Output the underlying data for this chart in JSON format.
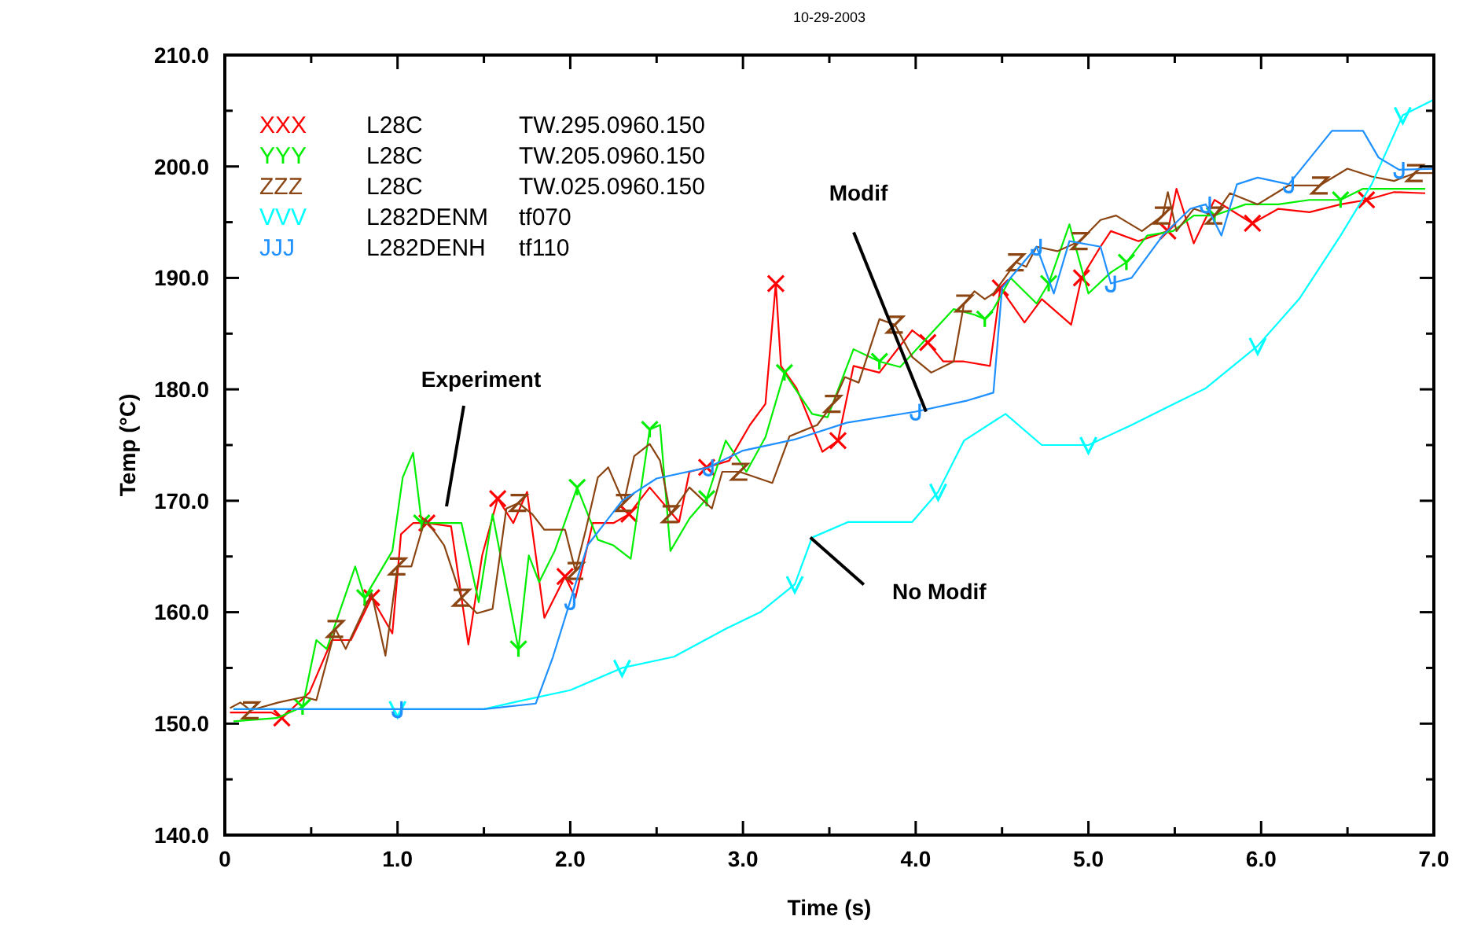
{
  "chart_data": {
    "type": "line",
    "title": "10-29-2003",
    "xlabel": "Time (s)",
    "ylabel": "Temp (°C)",
    "xlim": [
      0,
      7
    ],
    "ylim": [
      140,
      210
    ],
    "xticks": [
      0,
      {
        "value": 0.5,
        "label": null
      },
      {
        "value": 1,
        "label": "1.0"
      },
      {
        "value": 1.5,
        "label": null
      },
      {
        "value": 2,
        "label": "2.0"
      },
      {
        "value": 2.5,
        "label": null
      },
      {
        "value": 3,
        "label": "3.0"
      },
      {
        "value": 3.5,
        "label": null
      },
      {
        "value": 4,
        "label": "4.0"
      },
      {
        "value": 4.5,
        "label": null
      },
      {
        "value": 5,
        "label": "5.0"
      },
      {
        "value": 5.5,
        "label": null
      },
      {
        "value": 6,
        "label": "6.0"
      },
      {
        "value": 6.5,
        "label": null
      },
      {
        "value": 7,
        "label": "7.0"
      }
    ],
    "yticks": [
      {
        "value": 140,
        "label": "140.0"
      },
      {
        "value": 145,
        "label": null
      },
      {
        "value": 150,
        "label": "150.0"
      },
      {
        "value": 155,
        "label": null
      },
      {
        "value": 160,
        "label": "160.0"
      },
      {
        "value": 165,
        "label": null
      },
      {
        "value": 170,
        "label": "170.0"
      },
      {
        "value": 175,
        "label": null
      },
      {
        "value": 180,
        "label": "180.0"
      },
      {
        "value": 185,
        "label": null
      },
      {
        "value": 190,
        "label": "190.0"
      },
      {
        "value": 195,
        "label": null
      },
      {
        "value": 200,
        "label": "200.0"
      },
      {
        "value": 205,
        "label": null
      },
      {
        "value": 210,
        "label": "210.0"
      }
    ],
    "grid": false,
    "annotations": [
      "Experiment",
      {
        "text": "Modif",
        "x": 4.06,
        "y": 178
      },
      {
        "text": "No Modif",
        "x": 3.39,
        "y": 166.7
      }
    ],
    "series": [
      {
        "name": "XXX L28C TW.295.0960.150",
        "color": "#ff0000",
        "x": [
          0.03,
          0.27,
          0.33,
          0.49,
          0.62,
          0.73,
          0.85,
          0.97,
          1.02,
          1.09,
          1.17,
          1.31,
          1.41,
          1.49,
          1.58,
          1.67,
          1.75,
          1.85,
          1.97,
          2.03,
          2.13,
          2.25,
          2.34,
          2.46,
          2.63,
          2.69,
          2.79,
          2.92,
          3.04,
          3.13,
          3.19,
          3.22,
          3.31,
          3.46,
          3.55,
          3.64,
          3.79,
          3.98,
          4.07,
          4.16,
          4.28,
          4.43,
          4.49,
          4.63,
          4.73,
          4.9,
          4.96,
          5.07,
          5.13,
          5.29,
          5.46,
          5.51,
          5.61,
          5.73,
          5.95,
          6.1,
          6.28,
          6.46,
          6.61,
          6.77,
          6.95
        ],
        "values": [
          151,
          151,
          150.5,
          152.8,
          157.5,
          157.5,
          161.3,
          158.1,
          167,
          168,
          168,
          167.7,
          157.1,
          165.1,
          170.2,
          168,
          170.8,
          159.5,
          163.2,
          161.3,
          168,
          168,
          168.8,
          171.2,
          168.1,
          172.6,
          173,
          173.6,
          176.8,
          178.7,
          189.5,
          182.1,
          180.1,
          174.4,
          175.4,
          182.1,
          181.5,
          185.3,
          184.2,
          182.5,
          182.5,
          182.1,
          189.1,
          186,
          188.1,
          185.8,
          190,
          192.8,
          194.2,
          193.3,
          194.2,
          198,
          193.1,
          197,
          194.9,
          196.2,
          195.9,
          196.6,
          197,
          197.7,
          197.6
        ]
      },
      {
        "name": "YYY L28C TW.205.0960.150",
        "color": "#00ee00",
        "x": [
          0.05,
          0.3,
          0.45,
          0.53,
          0.59,
          0.755,
          0.81,
          0.97,
          1.03,
          1.09,
          1.14,
          1.37,
          1.47,
          1.55,
          1.7,
          1.76,
          1.82,
          1.91,
          2.04,
          2.16,
          2.25,
          2.35,
          2.46,
          2.52,
          2.58,
          2.69,
          2.79,
          2.9,
          3.02,
          3.13,
          3.24,
          3.4,
          3.49,
          3.64,
          3.79,
          3.91,
          4.22,
          4.34,
          4.4,
          4.45,
          4.55,
          4.7,
          4.77,
          4.89,
          5.0,
          5.13,
          5.22,
          5.34,
          5.49,
          5.61,
          5.73,
          5.91,
          6.1,
          6.28,
          6.46,
          6.59,
          6.77,
          6.95
        ],
        "values": [
          150.2,
          150.5,
          151.5,
          157.5,
          156.7,
          164.1,
          161.3,
          165.5,
          172.1,
          174.3,
          168,
          168,
          160.9,
          168.8,
          156.7,
          165.1,
          162.7,
          165.5,
          171.2,
          166.5,
          166,
          164.8,
          176.4,
          176.8,
          165.5,
          168.4,
          170.2,
          175.4,
          172.6,
          175.7,
          181.5,
          177.8,
          177.5,
          183.6,
          182.5,
          182,
          187.2,
          186.7,
          186.3,
          187.2,
          190,
          187.7,
          189.5,
          194.8,
          188.6,
          190.5,
          191.4,
          193.8,
          194.2,
          195.6,
          195.6,
          196.6,
          196.6,
          197,
          197,
          198,
          198,
          198
        ]
      },
      {
        "name": "ZZZ L28C TW.025.0960.150",
        "color": "#8b4513",
        "x": [
          0.03,
          0.09,
          0.15,
          0.31,
          0.46,
          0.53,
          0.64,
          0.7,
          0.85,
          0.93,
          1.0,
          1.08,
          1.16,
          1.27,
          1.37,
          1.46,
          1.55,
          1.63,
          1.7,
          1.78,
          1.85,
          1.97,
          2.03,
          2.09,
          2.16,
          2.22,
          2.31,
          2.37,
          2.46,
          2.52,
          2.58,
          2.69,
          2.82,
          2.88,
          2.98,
          3.17,
          3.27,
          3.43,
          3.52,
          3.59,
          3.67,
          3.79,
          3.88,
          3.98,
          4.09,
          4.22,
          4.28,
          4.34,
          4.4,
          4.45,
          4.58,
          4.64,
          4.7,
          4.82,
          4.95,
          5.07,
          5.16,
          5.31,
          5.43,
          5.46,
          5.51,
          5.61,
          5.73,
          5.82,
          5.98,
          6.16,
          6.34,
          6.5,
          6.64,
          6.77,
          6.89,
          7.0
        ],
        "values": [
          151.4,
          151.9,
          151.2,
          151.9,
          152.4,
          152.1,
          158.5,
          156.7,
          161.7,
          156.1,
          164.1,
          164.1,
          168.4,
          166,
          161.3,
          159.9,
          160.3,
          169.3,
          169.8,
          168.8,
          167.4,
          167.4,
          163.7,
          167.4,
          172.1,
          173,
          169.8,
          174,
          175.1,
          173.6,
          168.8,
          171.2,
          169.3,
          172.6,
          172.6,
          171.6,
          175.8,
          176.8,
          178.7,
          181.1,
          180.6,
          186.3,
          185.8,
          182.9,
          181.5,
          182.5,
          187.7,
          188.8,
          188.1,
          188.6,
          191.4,
          191,
          192.8,
          192.4,
          193.3,
          195.2,
          195.6,
          194.2,
          195.6,
          197.7,
          194.2,
          196.2,
          195.6,
          197.6,
          196.6,
          198.3,
          198.3,
          199.8,
          199.1,
          198.7,
          199.4,
          199.4
        ]
      },
      {
        "name": "VVV L282DENM tf070",
        "color": "#00ffff",
        "x": [
          0.05,
          0.5,
          1.0,
          1.5,
          1.7,
          2.0,
          2.3,
          2.6,
          2.9,
          3.1,
          3.3,
          3.4,
          3.61,
          3.98,
          4.13,
          4.28,
          4.52,
          4.73,
          5.0,
          5.25,
          5.43,
          5.68,
          5.98,
          6.22,
          6.46,
          6.64,
          6.82,
          7.0
        ],
        "values": [
          151.3,
          151.3,
          151.3,
          151.3,
          152,
          153,
          155,
          156,
          158.5,
          160,
          162.5,
          166.7,
          168.1,
          168.1,
          170.8,
          175.4,
          177.8,
          175,
          175,
          176.8,
          178.2,
          180.1,
          183.9,
          188.1,
          193.8,
          198.4,
          204.6,
          206
        ]
      },
      {
        "name": "JJJ L282DENH tf110",
        "color": "#1e90ff",
        "x": [
          0.05,
          0.5,
          1.0,
          1.5,
          1.8,
          1.9,
          2.0,
          2.1,
          2.3,
          2.5,
          2.8,
          3.0,
          3.3,
          3.6,
          4.0,
          4.3,
          4.45,
          4.5,
          4.7,
          4.8,
          4.89,
          5.07,
          5.13,
          5.25,
          5.43,
          5.59,
          5.68,
          5.77,
          5.86,
          5.98,
          6.16,
          6.41,
          6.59,
          6.68,
          6.8,
          7.0
        ],
        "values": [
          151.3,
          151.3,
          151.3,
          151.3,
          151.8,
          156,
          161,
          166,
          170,
          172,
          173,
          174.5,
          175.5,
          177,
          178,
          179,
          179.7,
          189.1,
          192.8,
          188.6,
          193.3,
          192.8,
          189.5,
          190,
          193.8,
          196.2,
          196.6,
          193.8,
          198.4,
          199,
          198.4,
          203.2,
          203.2,
          200.8,
          199.7,
          199.8
        ]
      }
    ]
  }
}
